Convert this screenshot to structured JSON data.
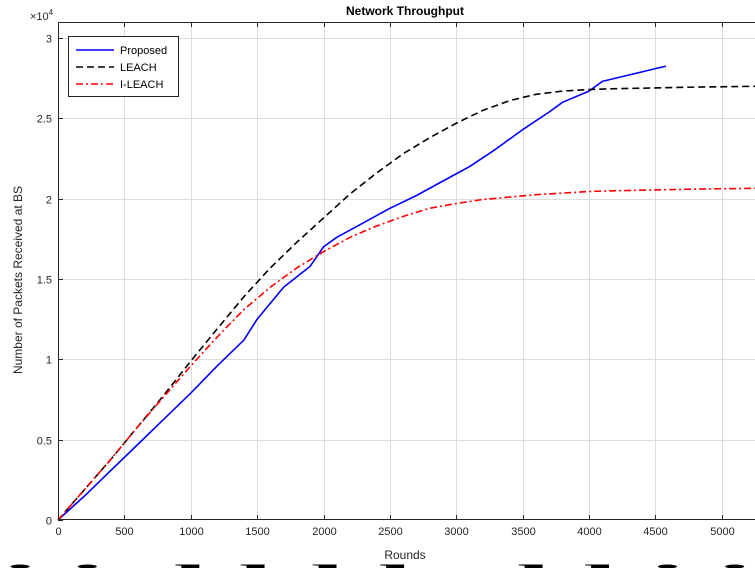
{
  "chart_data": {
    "type": "line",
    "title": "Network Throughput",
    "xlabel": "Rounds",
    "ylabel": "Number of Packets Received at BS",
    "exponent_label": "×10",
    "exponent_power": "4",
    "xlim": [
      0,
      5250
    ],
    "ylim": [
      0,
      31000
    ],
    "xticks": [
      0,
      500,
      1000,
      1500,
      2000,
      2500,
      3000,
      3500,
      4000,
      4500,
      5000
    ],
    "yticks": [
      0,
      5000,
      10000,
      15000,
      20000,
      25000,
      30000
    ],
    "ytick_labels": [
      "0",
      "0.5",
      "1",
      "1.5",
      "2",
      "2.5",
      "3"
    ],
    "grid": true,
    "legend_position": "top-left",
    "series": [
      {
        "name": "Proposed",
        "color": "#0000ff",
        "style": "solid",
        "x": [
          0,
          200,
          400,
          600,
          800,
          1000,
          1200,
          1400,
          1500,
          1700,
          1900,
          2000,
          2100,
          2300,
          2500,
          2700,
          2900,
          3100,
          3300,
          3500,
          3700,
          3800,
          4000,
          4100,
          4300,
          4500,
          4580
        ],
        "y": [
          0,
          1500,
          3100,
          4700,
          6300,
          7900,
          9600,
          11200,
          12500,
          14500,
          15800,
          17000,
          17600,
          18500,
          19400,
          20200,
          21100,
          22000,
          23100,
          24300,
          25400,
          26000,
          26700,
          27300,
          27700,
          28100,
          28250
        ]
      },
      {
        "name": "LEACH",
        "color": "#000000",
        "style": "dashed",
        "x": [
          0,
          200,
          400,
          600,
          800,
          1000,
          1200,
          1400,
          1600,
          1800,
          2000,
          2200,
          2400,
          2600,
          2800,
          3000,
          3200,
          3400,
          3600,
          3800,
          4000,
          4200,
          4500,
          4800,
          5250
        ],
        "y": [
          0,
          1900,
          3800,
          5800,
          7800,
          9900,
          11900,
          13900,
          15700,
          17300,
          18800,
          20300,
          21600,
          22800,
          23800,
          24700,
          25500,
          26100,
          26500,
          26700,
          26800,
          26850,
          26900,
          26950,
          27000
        ]
      },
      {
        "name": "I-LEACH",
        "color": "#ff0000",
        "style": "dashdot",
        "x": [
          0,
          200,
          400,
          600,
          800,
          1000,
          1200,
          1400,
          1600,
          1800,
          2000,
          2200,
          2400,
          2600,
          2800,
          3000,
          3200,
          3400,
          3600,
          3800,
          4000,
          4200,
          4500,
          4800,
          5250
        ],
        "y": [
          0,
          1900,
          3800,
          5800,
          7700,
          9600,
          11400,
          13100,
          14500,
          15700,
          16700,
          17600,
          18300,
          18900,
          19400,
          19700,
          19950,
          20100,
          20250,
          20350,
          20450,
          20500,
          20550,
          20600,
          20650
        ]
      }
    ]
  },
  "caption_fragment": "i i d bl h d l i i"
}
